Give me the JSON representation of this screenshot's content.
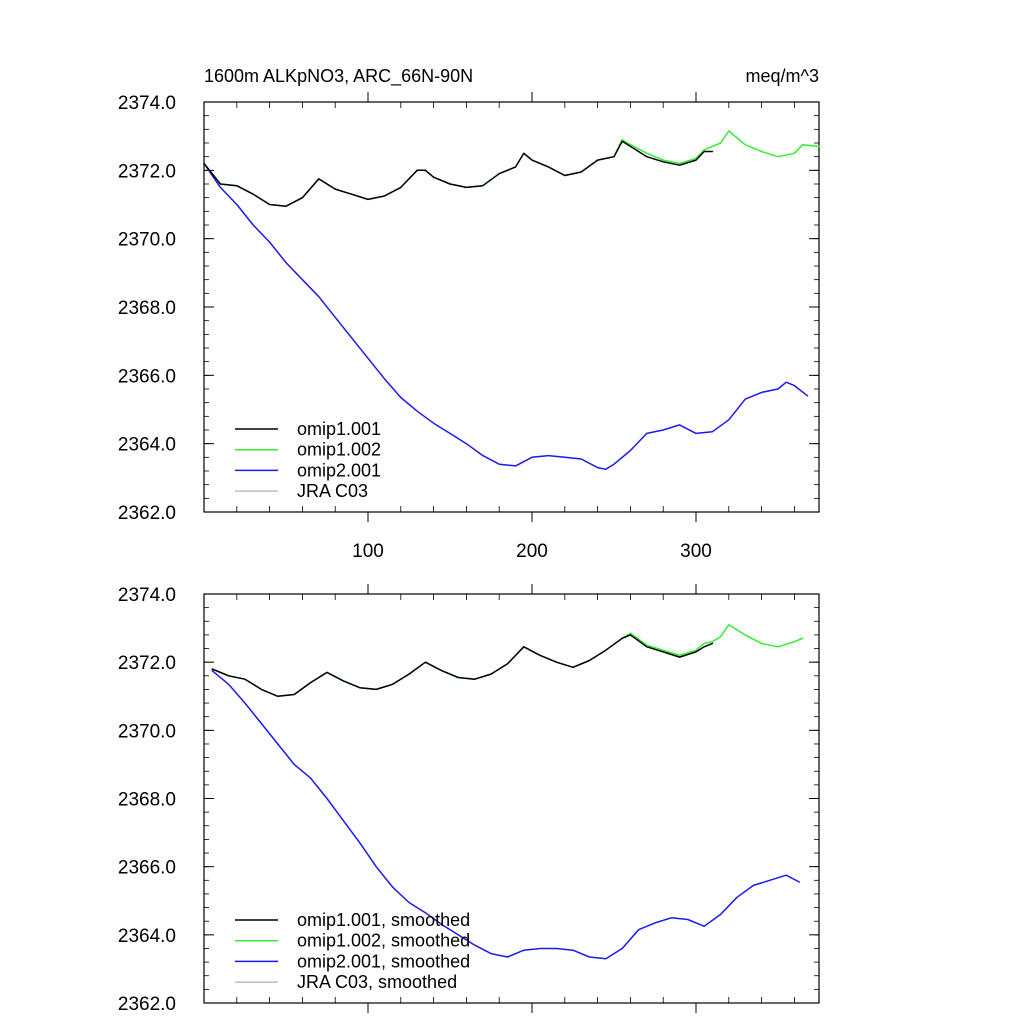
{
  "chart_data": [
    {
      "type": "line",
      "title_left": "1600m ALKpNO3, ARC_66N-90N",
      "title_right": "meq/m^3",
      "xlabel": "",
      "ylabel": "",
      "xlim": [
        0,
        375
      ],
      "ylim": [
        2362,
        2374
      ],
      "xticks": [
        100,
        200,
        300
      ],
      "yticks": [
        "2362.0",
        "2364.0",
        "2366.0",
        "2368.0",
        "2370.0",
        "2372.0",
        "2374.0"
      ],
      "show_xtick_labels": true,
      "legend_position": "lower-left",
      "series": [
        {
          "name": "omip1.001",
          "color": "#000000",
          "x": [
            0,
            10,
            20,
            30,
            40,
            50,
            60,
            70,
            80,
            90,
            100,
            110,
            120,
            130,
            135,
            140,
            150,
            160,
            170,
            180,
            190,
            195,
            200,
            210,
            220,
            230,
            240,
            250,
            255,
            260,
            270,
            280,
            290,
            300,
            305,
            310
          ],
          "y": [
            2372.2,
            2371.6,
            2371.55,
            2371.3,
            2371.0,
            2370.95,
            2371.2,
            2371.75,
            2371.45,
            2371.3,
            2371.15,
            2371.25,
            2371.5,
            2372.0,
            2372.0,
            2371.8,
            2371.6,
            2371.5,
            2371.55,
            2371.9,
            2372.1,
            2372.5,
            2372.3,
            2372.1,
            2371.85,
            2371.95,
            2372.3,
            2372.4,
            2372.85,
            2372.7,
            2372.4,
            2372.25,
            2372.15,
            2372.3,
            2372.55,
            2372.55
          ]
        },
        {
          "name": "omip1.002",
          "color": "#33ee33",
          "x": [
            0,
            10,
            20,
            30,
            40,
            50,
            60,
            70,
            80,
            90,
            100,
            110,
            120,
            130,
            135,
            140,
            150,
            160,
            170,
            180,
            190,
            195,
            200,
            210,
            220,
            230,
            240,
            250,
            255,
            260,
            270,
            280,
            290,
            300,
            305,
            310,
            315,
            320,
            330,
            340,
            350,
            360,
            365,
            375
          ],
          "y": [
            2372.2,
            2371.6,
            2371.55,
            2371.3,
            2371.0,
            2370.95,
            2371.2,
            2371.75,
            2371.45,
            2371.3,
            2371.15,
            2371.25,
            2371.5,
            2372.0,
            2372.0,
            2371.8,
            2371.6,
            2371.5,
            2371.55,
            2371.9,
            2372.1,
            2372.5,
            2372.3,
            2372.1,
            2371.85,
            2371.95,
            2372.3,
            2372.4,
            2372.9,
            2372.75,
            2372.5,
            2372.3,
            2372.2,
            2372.35,
            2372.6,
            2372.7,
            2372.8,
            2373.15,
            2372.75,
            2372.55,
            2372.4,
            2372.5,
            2372.75,
            2372.7
          ]
        },
        {
          "name": "omip2.001",
          "color": "#1a1aee",
          "x": [
            0,
            10,
            20,
            30,
            40,
            50,
            60,
            70,
            80,
            90,
            100,
            110,
            120,
            130,
            140,
            150,
            160,
            170,
            180,
            190,
            200,
            210,
            220,
            230,
            240,
            245,
            250,
            260,
            270,
            280,
            290,
            300,
            310,
            320,
            330,
            340,
            350,
            355,
            360,
            368
          ],
          "y": [
            2372.2,
            2371.5,
            2371.0,
            2370.4,
            2369.9,
            2369.3,
            2368.8,
            2368.3,
            2367.7,
            2367.1,
            2366.5,
            2365.9,
            2365.35,
            2364.95,
            2364.6,
            2364.3,
            2364.0,
            2363.65,
            2363.4,
            2363.35,
            2363.6,
            2363.65,
            2363.6,
            2363.55,
            2363.3,
            2363.25,
            2363.4,
            2363.8,
            2364.3,
            2364.4,
            2364.55,
            2364.3,
            2364.35,
            2364.7,
            2365.3,
            2365.5,
            2365.6,
            2365.8,
            2365.7,
            2365.4
          ]
        },
        {
          "name": "JRA C03",
          "color": "#bbbbbb",
          "x": [],
          "y": []
        }
      ]
    },
    {
      "type": "line",
      "title_left": "",
      "title_right": "",
      "xlabel": "",
      "ylabel": "",
      "xlim": [
        0,
        375
      ],
      "ylim": [
        2362,
        2374
      ],
      "xticks": [
        100,
        200,
        300
      ],
      "yticks": [
        "2362.0",
        "2364.0",
        "2366.0",
        "2368.0",
        "2370.0",
        "2372.0",
        "2374.0"
      ],
      "show_xtick_labels": false,
      "legend_position": "lower-left",
      "series": [
        {
          "name": "omip1.001, smoothed",
          "color": "#000000",
          "x": [
            5,
            15,
            25,
            35,
            45,
            55,
            65,
            75,
            85,
            95,
            105,
            115,
            125,
            135,
            145,
            155,
            165,
            175,
            185,
            195,
            205,
            215,
            225,
            235,
            245,
            255,
            260,
            270,
            280,
            290,
            300,
            305,
            310
          ],
          "y": [
            2371.8,
            2371.6,
            2371.5,
            2371.2,
            2371.0,
            2371.05,
            2371.4,
            2371.7,
            2371.45,
            2371.25,
            2371.2,
            2371.35,
            2371.65,
            2372.0,
            2371.75,
            2371.55,
            2371.5,
            2371.65,
            2371.95,
            2372.45,
            2372.2,
            2372.0,
            2371.85,
            2372.05,
            2372.35,
            2372.7,
            2372.8,
            2372.45,
            2372.3,
            2372.15,
            2372.3,
            2372.45,
            2372.55
          ]
        },
        {
          "name": "omip1.002, smoothed",
          "color": "#33ee33",
          "x": [
            5,
            15,
            25,
            35,
            45,
            55,
            65,
            75,
            85,
            95,
            105,
            115,
            125,
            135,
            145,
            155,
            165,
            175,
            185,
            195,
            205,
            215,
            225,
            235,
            245,
            255,
            260,
            270,
            280,
            290,
            300,
            305,
            310,
            315,
            320,
            330,
            340,
            350,
            360,
            365
          ],
          "y": [
            2371.8,
            2371.6,
            2371.5,
            2371.2,
            2371.0,
            2371.05,
            2371.4,
            2371.7,
            2371.45,
            2371.25,
            2371.2,
            2371.35,
            2371.65,
            2372.0,
            2371.75,
            2371.55,
            2371.5,
            2371.65,
            2371.95,
            2372.45,
            2372.2,
            2372.0,
            2371.85,
            2372.05,
            2372.35,
            2372.7,
            2372.85,
            2372.5,
            2372.35,
            2372.2,
            2372.35,
            2372.55,
            2372.6,
            2372.75,
            2373.1,
            2372.8,
            2372.55,
            2372.45,
            2372.6,
            2372.7
          ]
        },
        {
          "name": "omip2.001, smoothed",
          "color": "#1a1aee",
          "x": [
            5,
            15,
            25,
            35,
            45,
            55,
            65,
            75,
            85,
            95,
            105,
            115,
            125,
            135,
            145,
            155,
            165,
            175,
            185,
            195,
            205,
            215,
            225,
            235,
            245,
            255,
            265,
            275,
            285,
            295,
            305,
            315,
            325,
            335,
            345,
            355,
            363
          ],
          "y": [
            2371.75,
            2371.35,
            2370.8,
            2370.2,
            2369.6,
            2369.0,
            2368.6,
            2368.0,
            2367.35,
            2366.7,
            2366.0,
            2365.4,
            2364.95,
            2364.65,
            2364.3,
            2364.0,
            2363.7,
            2363.45,
            2363.35,
            2363.55,
            2363.6,
            2363.6,
            2363.55,
            2363.35,
            2363.3,
            2363.6,
            2364.15,
            2364.35,
            2364.5,
            2364.45,
            2364.25,
            2364.6,
            2365.1,
            2365.45,
            2365.6,
            2365.75,
            2365.55
          ]
        },
        {
          "name": "JRA C03, smoothed",
          "color": "#bbbbbb",
          "x": [],
          "y": []
        }
      ]
    }
  ]
}
